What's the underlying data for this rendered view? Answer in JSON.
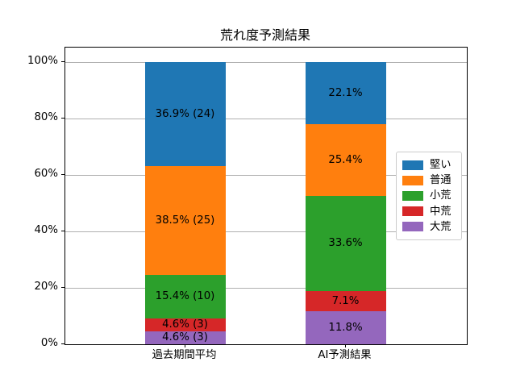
{
  "title": "荒れ度予測結果",
  "chart_data": {
    "type": "bar",
    "stacked": true,
    "orientation": "vertical",
    "title": "荒れ度予測結果",
    "categories": [
      "過去期間平均",
      "AI予測結果"
    ],
    "series": [
      {
        "name": "堅い",
        "color": "#1f77b4",
        "values": [
          36.9,
          22.1
        ],
        "labels": [
          "36.9% (24)",
          "22.1%"
        ]
      },
      {
        "name": "普通",
        "color": "#ff7f0e",
        "values": [
          38.5,
          25.4
        ],
        "labels": [
          "38.5% (25)",
          "25.4%"
        ]
      },
      {
        "name": "小荒",
        "color": "#2ca02c",
        "values": [
          15.4,
          33.6
        ],
        "labels": [
          "15.4% (10)",
          "33.6%"
        ]
      },
      {
        "name": "中荒",
        "color": "#d62728",
        "values": [
          4.6,
          7.1
        ],
        "labels": [
          "4.6% (3)",
          "7.1%"
        ]
      },
      {
        "name": "大荒",
        "color": "#9467bd",
        "values": [
          4.6,
          11.8
        ],
        "labels": [
          "4.6% (3)",
          "11.8%"
        ]
      }
    ],
    "xlabel": "",
    "ylabel": "",
    "y_ticks": [
      "0%",
      "20%",
      "40%",
      "60%",
      "80%",
      "100%"
    ],
    "ylim": [
      0,
      105
    ],
    "grid": true,
    "grid_color": "#b0b0b0",
    "legend_position": "center right",
    "legend_entries": [
      "堅い",
      "普通",
      "小荒",
      "中荒",
      "大荒"
    ]
  }
}
